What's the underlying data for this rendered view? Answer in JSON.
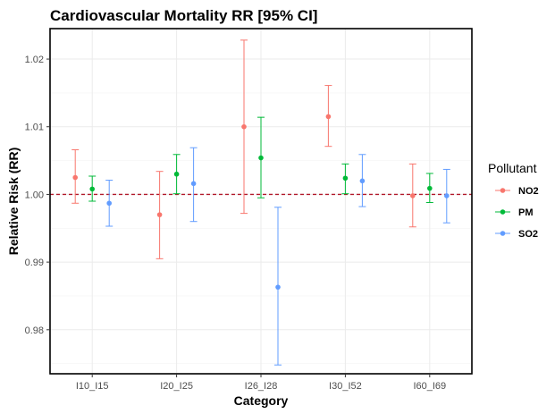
{
  "chart_data": {
    "type": "scatter",
    "title": "Cardiovascular Mortality RR [95% CI]",
    "xlabel": "Category",
    "ylabel": "Relative Risk (RR)",
    "categories": [
      "I10_I15",
      "I20_I25",
      "I26_I28",
      "I30_I52",
      "I60_I69"
    ],
    "ylim": [
      0.9735,
      1.0245
    ],
    "yticks": [
      0.98,
      0.99,
      1.0,
      1.01,
      1.02
    ],
    "ytick_labels": [
      "0.98",
      "0.99",
      "1.00",
      "1.01",
      "1.02"
    ],
    "reference_line": 1.0,
    "reference_line_color": "#b2182b",
    "grid": true,
    "legend": {
      "title": "Pollutant",
      "position": "right"
    },
    "series": [
      {
        "name": "NO2",
        "color": "#f8766d",
        "rr": [
          1.0025,
          0.997,
          1.01,
          1.0115,
          0.9998
        ],
        "lower": [
          0.9987,
          0.9905,
          0.9972,
          1.0071,
          0.9952
        ],
        "upper": [
          1.0066,
          1.0034,
          1.0228,
          1.0161,
          1.0045
        ]
      },
      {
        "name": "PM",
        "color": "#00ba38",
        "rr": [
          1.0008,
          1.003,
          1.0054,
          1.0024,
          1.0009
        ],
        "lower": [
          0.999,
          1.0001,
          0.9995,
          1.0001,
          0.9988
        ],
        "upper": [
          1.0027,
          1.0059,
          1.0114,
          1.0045,
          1.0031
        ]
      },
      {
        "name": "SO2",
        "color": "#619cff",
        "rr": [
          0.9987,
          1.0016,
          0.9863,
          1.002,
          0.9998
        ],
        "lower": [
          0.9953,
          0.996,
          0.9748,
          0.9982,
          0.9958
        ],
        "upper": [
          1.0021,
          1.0069,
          0.9981,
          1.0059,
          1.0037
        ]
      }
    ]
  }
}
